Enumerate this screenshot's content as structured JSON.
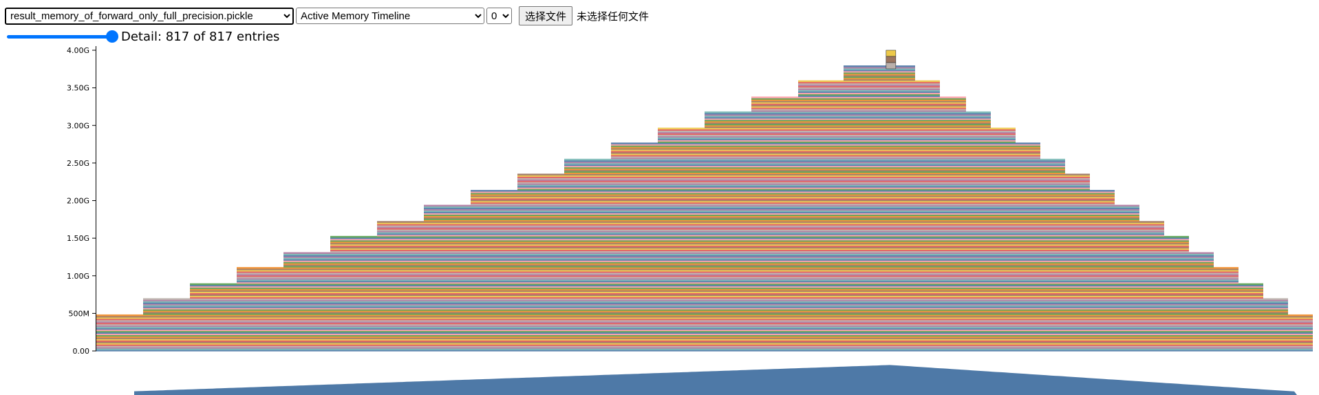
{
  "controls": {
    "file_select": {
      "selected": "result_memory_of_forward_only_full_precision.pickle"
    },
    "view_select": {
      "selected": "Active Memory Timeline"
    },
    "device_select": {
      "selected": "0"
    },
    "file_button_label": "选择文件",
    "file_status": "未选择任何文件",
    "detail": {
      "text": "Detail: 817 of 817 entries",
      "value": 817,
      "max": 817
    }
  },
  "colors": {
    "accent": "#0075ff",
    "mini_area": "#4e79a7",
    "palette": [
      "#4e79a7",
      "#f28e2c",
      "#e15759",
      "#76b7b2",
      "#59a14f",
      "#edc949",
      "#af7aa1",
      "#ff9da7",
      "#9c755f",
      "#bab0ab"
    ]
  },
  "chart_data": {
    "type": "area",
    "title": "",
    "xlabel": "",
    "ylabel": "",
    "ylim": [
      0,
      4.0
    ],
    "y_unit": "G",
    "yticks": [
      {
        "value": 0.0,
        "label": "0.00"
      },
      {
        "value": 0.5,
        "label": "500M"
      },
      {
        "value": 1.0,
        "label": "1.00G"
      },
      {
        "value": 1.5,
        "label": "1.50G"
      },
      {
        "value": 2.0,
        "label": "2.00G"
      },
      {
        "value": 2.5,
        "label": "2.50G"
      },
      {
        "value": 3.0,
        "label": "3.00G"
      },
      {
        "value": 3.5,
        "label": "3.50G"
      },
      {
        "value": 4.0,
        "label": "4.00G"
      }
    ],
    "entries": 817,
    "base_allocated": 0.48,
    "peak_allocated": 4.0,
    "peak_position": 0.653,
    "step_allocations": 17,
    "stacked_layers": "many small colored allocation bands stacked into a triangular (pyramid) timeline"
  }
}
